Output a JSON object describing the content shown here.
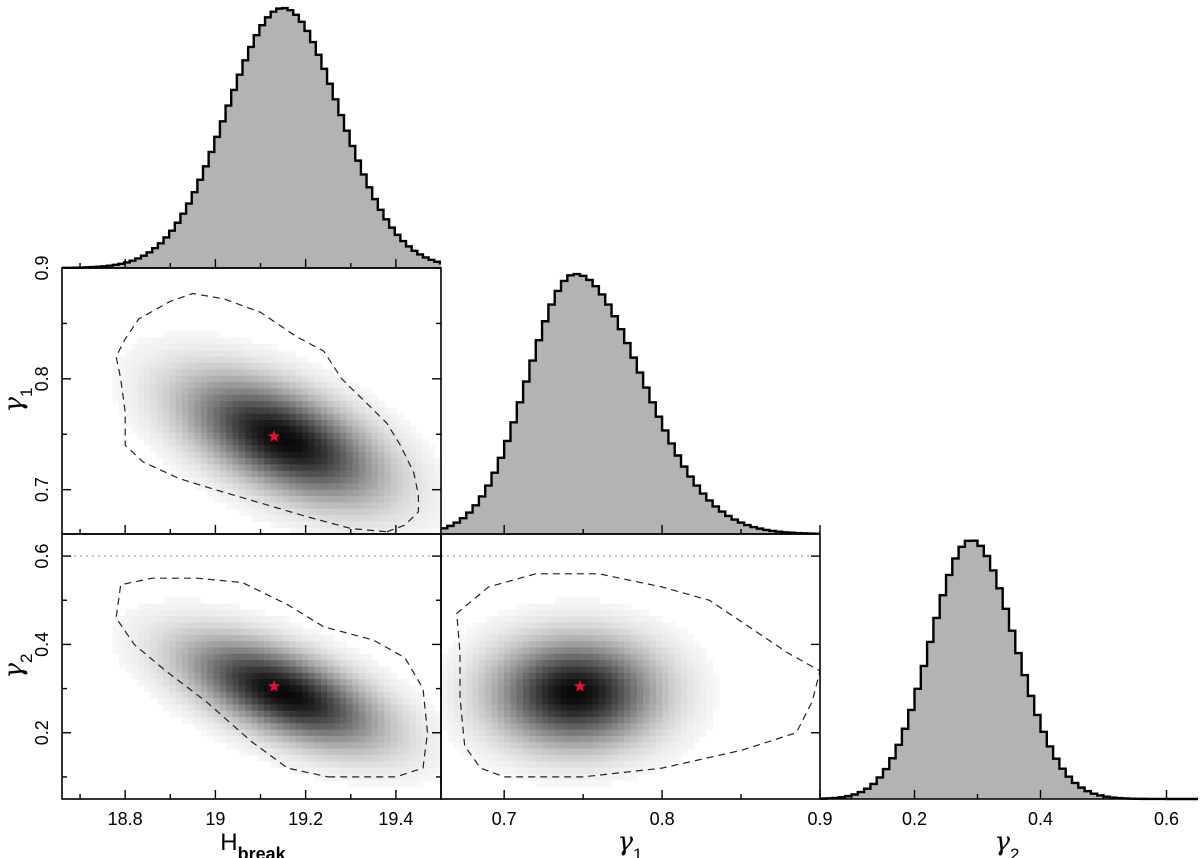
{
  "chart_data": [
    {
      "type": "area",
      "subplot": "hist-hbreak",
      "x_range": [
        18.66,
        19.5
      ],
      "bin_width": 0.0125,
      "center": 19.15,
      "sigma": 0.125,
      "peak_normalized": 1.0,
      "fill_color": "#b3b3b3",
      "xticks": [
        18.8,
        19.0,
        19.2,
        19.4
      ],
      "xtick_labels": [
        "18.8",
        "19",
        "19.2",
        "19.4"
      ],
      "xlabel": "H",
      "xlabel_sub": "break"
    },
    {
      "type": "area",
      "subplot": "hist-gamma1",
      "x_range": [
        0.66,
        0.9
      ],
      "bin_width": 0.004,
      "center": 0.745,
      "sigma": 0.03,
      "sigma_right_tail": 0.042,
      "peak_normalized": 1.0,
      "fill_color": "#b3b3b3",
      "xticks": [
        0.7,
        0.8,
        0.9
      ],
      "xtick_labels": [
        "0.7",
        "0.8",
        "0.9"
      ],
      "xlabel": "γ",
      "xlabel_sub": "1"
    },
    {
      "type": "area",
      "subplot": "hist-gamma2",
      "x_range": [
        0.05,
        0.65
      ],
      "bin_width": 0.01,
      "center": 0.29,
      "sigma": 0.065,
      "sigma_right_tail": 0.07,
      "peak_normalized": 1.0,
      "fill_color": "#b3b3b3",
      "xticks": [
        0.2,
        0.4,
        0.6
      ],
      "xtick_labels": [
        "0.2",
        "0.4",
        "0.6"
      ],
      "xlabel": "γ",
      "xlabel_sub": "2"
    },
    {
      "type": "heatmap",
      "subplot": "joint-hbreak-gamma1",
      "x_range": [
        18.66,
        19.5
      ],
      "y_range": [
        0.66,
        0.9
      ],
      "mean": [
        19.15,
        0.745
      ],
      "sigma": [
        0.125,
        0.032
      ],
      "correlation": -0.55,
      "best_fit": [
        19.13,
        0.748
      ],
      "yticks": [
        0.7,
        0.8,
        0.9
      ],
      "ytick_labels": [
        "0.7",
        "0.8",
        "0.9"
      ],
      "ylabel": "γ",
      "ylabel_sub": "1",
      "contour": [
        [
          19.38,
          0.662
        ],
        [
          19.42,
          0.668
        ],
        [
          19.45,
          0.68
        ],
        [
          19.45,
          0.695
        ],
        [
          19.44,
          0.715
        ],
        [
          19.41,
          0.74
        ],
        [
          19.38,
          0.76
        ],
        [
          19.33,
          0.78
        ],
        [
          19.28,
          0.8
        ],
        [
          19.24,
          0.825
        ],
        [
          19.18,
          0.838
        ],
        [
          19.1,
          0.86
        ],
        [
          19.02,
          0.872
        ],
        [
          18.95,
          0.877
        ],
        [
          18.9,
          0.87
        ],
        [
          18.83,
          0.854
        ],
        [
          18.8,
          0.836
        ],
        [
          18.78,
          0.82
        ],
        [
          18.79,
          0.8
        ],
        [
          18.8,
          0.77
        ],
        [
          18.8,
          0.74
        ],
        [
          18.84,
          0.725
        ],
        [
          18.92,
          0.71
        ],
        [
          19.0,
          0.7
        ],
        [
          19.1,
          0.688
        ],
        [
          19.2,
          0.676
        ],
        [
          19.3,
          0.665
        ],
        [
          19.38,
          0.662
        ]
      ]
    },
    {
      "type": "heatmap",
      "subplot": "joint-hbreak-gamma2",
      "x_range": [
        18.66,
        19.5
      ],
      "y_range": [
        0.05,
        0.65
      ],
      "mean": [
        19.15,
        0.29
      ],
      "sigma": [
        0.125,
        0.07
      ],
      "correlation": -0.6,
      "best_fit": [
        19.13,
        0.305
      ],
      "ref_line_y": 0.6,
      "yticks": [
        0.2,
        0.4,
        0.6
      ],
      "ytick_labels": [
        "0.2",
        "0.4",
        "0.6"
      ],
      "ylabel": "γ",
      "ylabel_sub": "2",
      "contour": [
        [
          19.25,
          0.1
        ],
        [
          19.4,
          0.1
        ],
        [
          19.46,
          0.12
        ],
        [
          19.47,
          0.2
        ],
        [
          19.46,
          0.3
        ],
        [
          19.42,
          0.37
        ],
        [
          19.35,
          0.41
        ],
        [
          19.24,
          0.44
        ],
        [
          19.16,
          0.49
        ],
        [
          19.06,
          0.54
        ],
        [
          18.96,
          0.55
        ],
        [
          18.86,
          0.55
        ],
        [
          18.79,
          0.535
        ],
        [
          18.78,
          0.46
        ],
        [
          18.82,
          0.4
        ],
        [
          18.89,
          0.34
        ],
        [
          18.98,
          0.27
        ],
        [
          19.08,
          0.18
        ],
        [
          19.16,
          0.12
        ],
        [
          19.25,
          0.1
        ]
      ]
    },
    {
      "type": "heatmap",
      "subplot": "joint-gamma1-gamma2",
      "x_range": [
        0.66,
        0.9
      ],
      "y_range": [
        0.05,
        0.65
      ],
      "mean": [
        0.745,
        0.29
      ],
      "sigma": [
        0.03,
        0.07
      ],
      "correlation": 0.0,
      "best_fit": [
        0.748,
        0.305
      ],
      "ref_line_y": 0.6,
      "contour": [
        [
          0.7,
          0.1
        ],
        [
          0.75,
          0.1
        ],
        [
          0.8,
          0.12
        ],
        [
          0.85,
          0.16
        ],
        [
          0.885,
          0.2
        ],
        [
          0.895,
          0.27
        ],
        [
          0.9,
          0.34
        ],
        [
          0.88,
          0.38
        ],
        [
          0.855,
          0.44
        ],
        [
          0.83,
          0.5
        ],
        [
          0.8,
          0.53
        ],
        [
          0.76,
          0.56
        ],
        [
          0.72,
          0.56
        ],
        [
          0.69,
          0.53
        ],
        [
          0.67,
          0.47
        ],
        [
          0.672,
          0.38
        ],
        [
          0.672,
          0.28
        ],
        [
          0.675,
          0.17
        ],
        [
          0.685,
          0.12
        ],
        [
          0.7,
          0.1
        ]
      ]
    }
  ]
}
